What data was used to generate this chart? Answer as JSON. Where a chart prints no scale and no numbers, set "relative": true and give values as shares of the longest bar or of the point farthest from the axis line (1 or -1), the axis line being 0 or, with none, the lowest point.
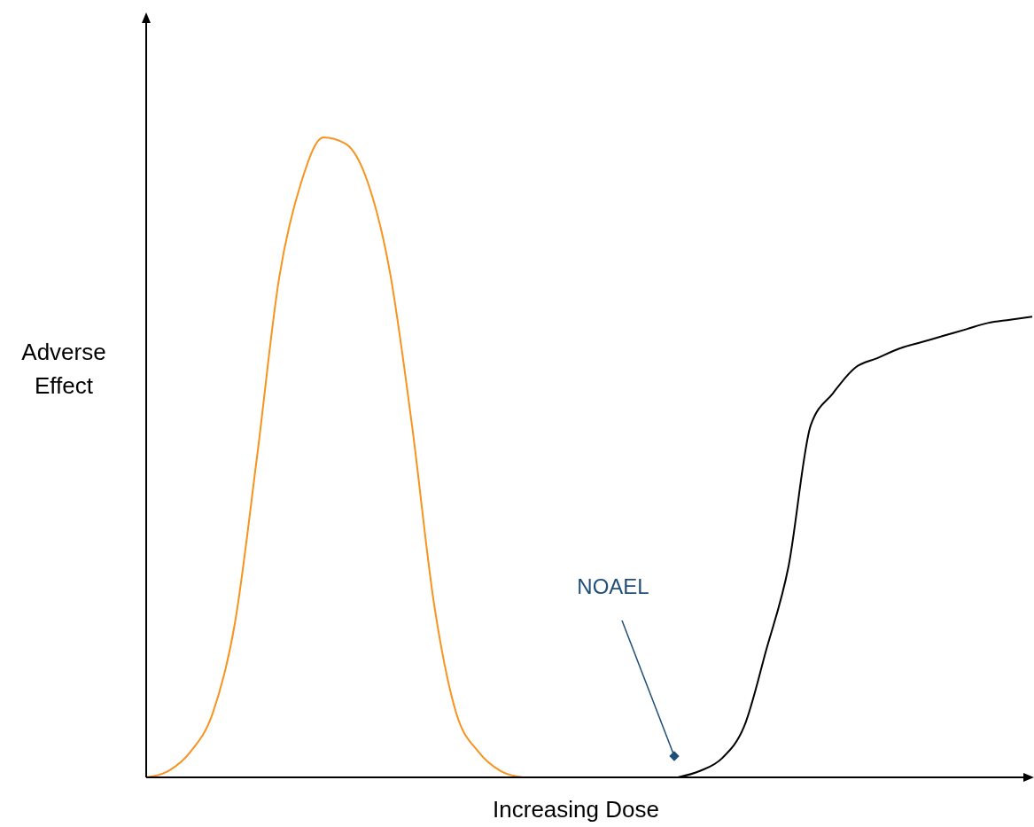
{
  "chart_data": {
    "type": "line",
    "relative": true,
    "xlabel": "Increasing Dose",
    "ylabel": "Adverse Effect",
    "annotations": [
      "NOAEL"
    ],
    "line_style": "solid",
    "categories": [
      null,
      null,
      null,
      null,
      null,
      null,
      null,
      null,
      null,
      null,
      null,
      null,
      null,
      null,
      null,
      null,
      null,
      null,
      null,
      null,
      null,
      null,
      null,
      null,
      null,
      null,
      null,
      null,
      null,
      null,
      null,
      null,
      null,
      null,
      null,
      null,
      null,
      null,
      null,
      null,
      null
    ],
    "series": [
      {
        "color": "#f7931e",
        "values": [
          0,
          0.01,
          0.04,
          0.1,
          0.24,
          0.5,
          0.78,
          0.93,
          1,
          0.99,
          0.93,
          0.79,
          0.55,
          0.27,
          0.1,
          0.04,
          0.01,
          0,
          null,
          null,
          null,
          null,
          null,
          null,
          null,
          null,
          null,
          null,
          null,
          null,
          null,
          null,
          null,
          null,
          null,
          null,
          null,
          null,
          null,
          null,
          null
        ]
      },
      {
        "color": "#000000",
        "values": [
          null,
          null,
          null,
          null,
          null,
          null,
          null,
          null,
          null,
          null,
          null,
          null,
          null,
          null,
          null,
          null,
          null,
          null,
          null,
          null,
          null,
          null,
          null,
          null,
          0,
          0.01,
          0.03,
          0.08,
          0.2,
          0.33,
          0.55,
          0.6,
          0.64,
          0.655,
          0.67,
          0.68,
          0.69,
          0.7,
          0.71,
          0.715,
          0.72
        ]
      }
    ]
  }
}
